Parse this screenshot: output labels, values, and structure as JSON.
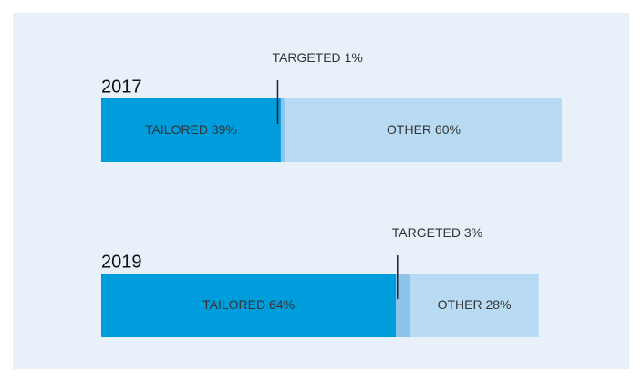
{
  "chart_data": {
    "type": "stacked-bar-horizontal",
    "categories": [
      "2017",
      "2019"
    ],
    "series": [
      {
        "name": "TAILORED",
        "color": "#009ddd",
        "values": [
          39,
          64
        ],
        "value_labels": [
          "39%",
          "64%"
        ]
      },
      {
        "name": "TARGETED",
        "color": "#8ec4ea",
        "values": [
          1,
          3
        ],
        "value_labels": [
          "1%",
          "3%"
        ]
      },
      {
        "name": "OTHER",
        "color": "#b8dbf3",
        "values": [
          60,
          28
        ],
        "value_labels": [
          "60%",
          "28%"
        ]
      }
    ],
    "xlim": [
      0,
      100
    ]
  }
}
